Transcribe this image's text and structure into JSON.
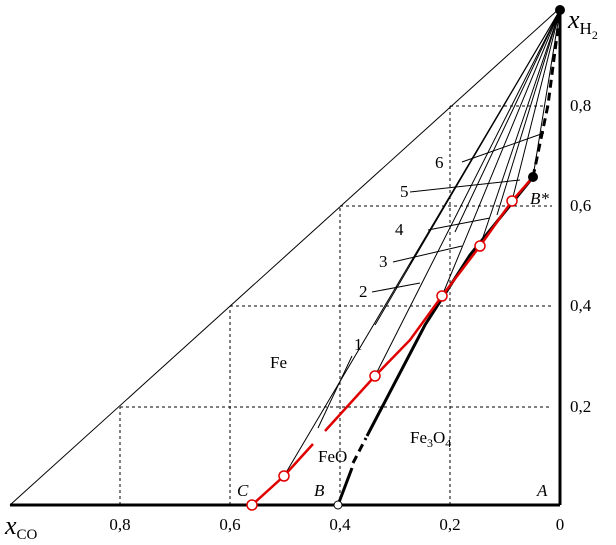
{
  "axes": {
    "x_label": {
      "main": "x",
      "sub": "CO"
    },
    "y_label": {
      "main": "x",
      "sub": "H",
      "subsub": "2"
    },
    "x_ticks": [
      "0,8",
      "0,6",
      "0,4",
      "0,2",
      "0"
    ],
    "y_ticks": [
      "0,2",
      "0,4",
      "0,6",
      "0,8"
    ]
  },
  "points": {
    "A": "A",
    "B": "B",
    "C": "C",
    "B_star": "B*"
  },
  "regions": {
    "fe": "Fe",
    "feo": "FeO",
    "fe3o4": [
      "Fe",
      "3",
      "O",
      "4"
    ]
  },
  "line_labels": [
    "1",
    "2",
    "3",
    "4",
    "5",
    "6"
  ]
}
